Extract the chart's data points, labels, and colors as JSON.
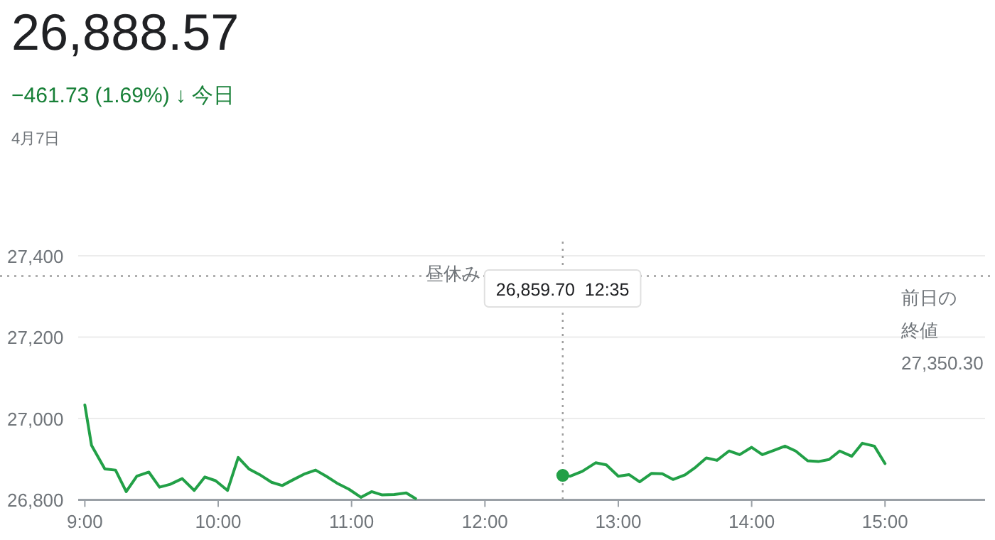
{
  "chart_data": {
    "type": "line",
    "title": "26,888.57",
    "subtitle": "−461.73 (1.69%) ↓ 今日",
    "annotations": [
      "4月7日",
      "昼休み",
      "26,859.70  12:35",
      "27,350.30"
    ],
    "series": [
      {
        "color": "#22a047",
        "x": [
          9.0,
          9.05,
          9.15,
          9.23,
          9.31,
          9.39,
          9.48,
          9.56,
          9.64,
          9.73,
          9.82,
          9.9,
          9.98,
          10.07,
          10.15,
          10.23,
          10.31,
          10.4,
          10.48,
          10.56,
          10.65,
          10.73,
          10.81,
          10.89,
          10.98,
          11.07,
          11.15,
          11.23,
          11.32,
          11.41,
          11.48
        ],
        "values": [
          27033,
          26934,
          26876,
          26873,
          26820,
          26858,
          26868,
          26831,
          26838,
          26852,
          26823,
          26856,
          26847,
          26823,
          26904,
          26876,
          26862,
          26843,
          26835,
          26849,
          26864,
          26873,
          26858,
          26841,
          26826,
          26806,
          26820,
          26812,
          26813,
          26817,
          26803
        ]
      },
      {
        "color": "#22a047",
        "x": [
          12.5833,
          12.64,
          12.73,
          12.83,
          12.91,
          13.0,
          13.08,
          13.16,
          13.25,
          13.33,
          13.41,
          13.5,
          13.58,
          13.66,
          13.74,
          13.83,
          13.91,
          14.0,
          14.08,
          14.17,
          14.25,
          14.33,
          14.42,
          14.5,
          14.58,
          14.66,
          14.75,
          14.83,
          14.92,
          15.0
        ],
        "values": [
          26860,
          26858,
          26870,
          26891,
          26886,
          26858,
          26862,
          26844,
          26865,
          26864,
          26850,
          26861,
          26880,
          26903,
          26897,
          26920,
          26911,
          26929,
          26911,
          26922,
          26932,
          26920,
          26896,
          26894,
          26899,
          26920,
          26907,
          26939,
          26932,
          26889
        ]
      }
    ],
    "xlim": [
      8.95,
      15.75
    ],
    "ylim": [
      26800,
      27400
    ],
    "xticks": [
      {
        "value": 9,
        "label": "9:00"
      },
      {
        "value": 10,
        "label": "10:00"
      },
      {
        "value": 11,
        "label": "11:00"
      },
      {
        "value": 12,
        "label": "12:00"
      },
      {
        "value": 13,
        "label": "13:00"
      },
      {
        "value": 14,
        "label": "14:00"
      },
      {
        "value": 15,
        "label": "15:00"
      }
    ],
    "yticks": [
      {
        "value": 26800,
        "label": "26,800"
      },
      {
        "value": 27000,
        "label": "27,000"
      },
      {
        "value": 27200,
        "label": "27,200"
      },
      {
        "value": 27400,
        "label": "27,400"
      }
    ],
    "ref_lines": [
      {
        "axis": "y",
        "value": 27350.3,
        "label": "前日の終値",
        "line_style": "dotted",
        "color": "#9e9e9e"
      },
      {
        "axis": "x",
        "value": 12.5833,
        "label": null,
        "line_style": "dotted",
        "color": "#9e9e9e"
      }
    ],
    "grid": "y",
    "marker": "none",
    "line_style": "solid"
  }
}
